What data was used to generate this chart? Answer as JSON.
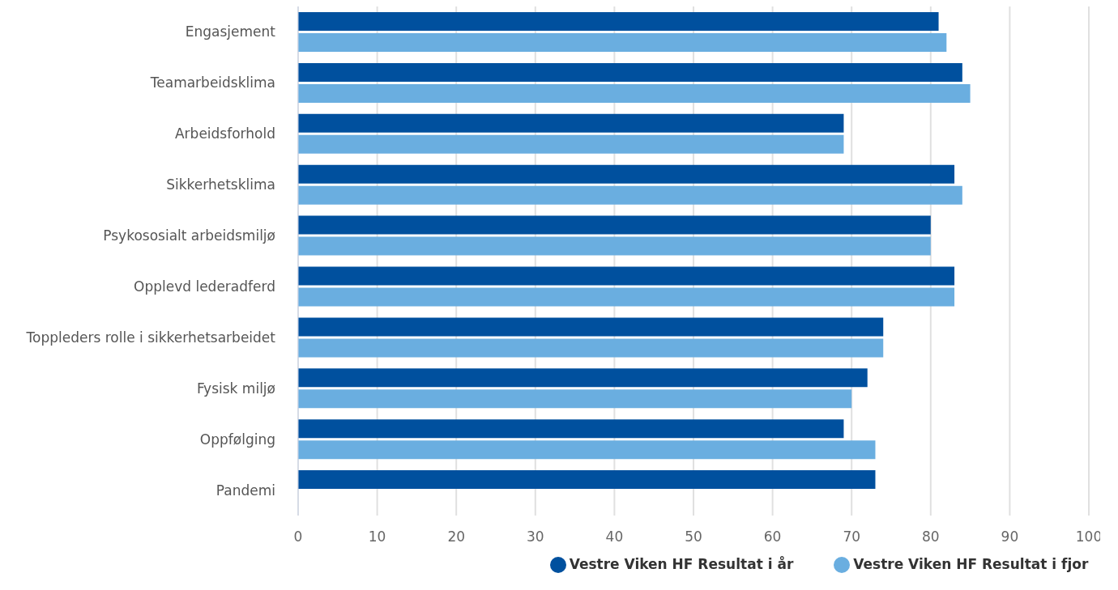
{
  "chart_data": {
    "type": "bar",
    "orientation": "horizontal",
    "categories": [
      "Engasjement",
      "Teamarbeidsklima",
      "Arbeidsforhold",
      "Sikkerhetsklima",
      "Psykososialt arbeidsmiljø",
      "Opplevd lederadferd",
      "Toppleders rolle i sikkerhetsarbeidet",
      "Fysisk miljø",
      "Oppfølging",
      "Pandemi"
    ],
    "series": [
      {
        "name": "Vestre Viken HF Resultat i år",
        "color": "#00509e",
        "values": [
          81,
          84,
          69,
          83,
          80,
          83,
          74,
          72,
          69,
          73
        ]
      },
      {
        "name": "Vestre Viken HF Resultat i fjor",
        "color": "#6aaee0",
        "values": [
          82,
          85,
          69,
          84,
          80,
          83,
          74,
          70,
          73,
          null
        ]
      }
    ],
    "xlim": [
      0,
      100
    ],
    "xticks": [
      0,
      10,
      20,
      30,
      40,
      50,
      60,
      70,
      80,
      90,
      100
    ],
    "grid": "x",
    "legend": "bottom"
  }
}
